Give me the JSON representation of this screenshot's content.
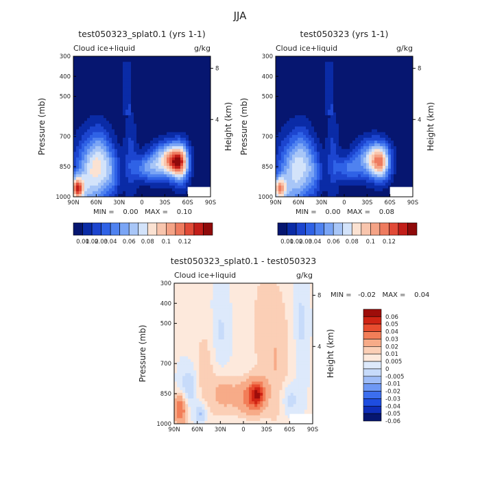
{
  "page_title": "JJA",
  "chart_data": [
    {
      "type": "heatmap",
      "title": "test050323_splat0.1 (yrs 1-1)",
      "variable": "Cloud ice+liquid",
      "units": "g/kg",
      "ylabel": "Pressure (mb)",
      "y2label": "Height (km)",
      "x_ticks": [
        "90N",
        "60N",
        "30N",
        "0",
        "30S",
        "60S",
        "90S"
      ],
      "y_ticks": [
        "300",
        "400",
        "500",
        "700",
        "850",
        "1000"
      ],
      "y2_ticks": [
        "8",
        "4"
      ],
      "min_max": "MIN =    0.00   MAX =    0.10",
      "colorbar_labels": [
        "0.01",
        "0.02",
        "0.03",
        "0.04",
        "0.06",
        "0.08",
        "0.1",
        "0.12"
      ],
      "blobs": [
        {
          "lat": 70,
          "p": 900,
          "v": 0.06,
          "sx": 14,
          "sp": 130
        },
        {
          "lat": 55,
          "p": 820,
          "v": 0.045,
          "sx": 10,
          "sp": 110
        },
        {
          "lat": 40,
          "p": 880,
          "v": 0.035,
          "sx": 8,
          "sp": 90
        },
        {
          "lat": 15,
          "p": 800,
          "v": 0.02,
          "sx": 6,
          "sp": 160
        },
        {
          "lat": -30,
          "p": 820,
          "v": 0.065,
          "sx": 14,
          "sp": 60
        },
        {
          "lat": -45,
          "p": 820,
          "v": 0.08,
          "sx": 10,
          "sp": 55
        },
        {
          "lat": -52,
          "p": 840,
          "v": 0.05,
          "sx": 7,
          "sp": 75
        },
        {
          "lat": -5,
          "p": 860,
          "v": 0.04,
          "sx": 12,
          "sp": 45
        },
        {
          "lat": 85,
          "p": 960,
          "v": 0.1,
          "sx": 6,
          "sp": 40
        }
      ]
    },
    {
      "type": "heatmap",
      "title": "test050323 (yrs 1-1)",
      "variable": "Cloud ice+liquid",
      "units": "g/kg",
      "ylabel": "Pressure (mb)",
      "y2label": "Height (km)",
      "x_ticks": [
        "90N",
        "60N",
        "30N",
        "0",
        "30S",
        "60S",
        "90S"
      ],
      "y_ticks": [
        "300",
        "400",
        "500",
        "700",
        "850",
        "1000"
      ],
      "y2_ticks": [
        "8",
        "4"
      ],
      "min_max": "MIN =    0.00   MAX =    0.08",
      "colorbar_labels": [
        "0.01",
        "0.02",
        "0.03",
        "0.04",
        "0.06",
        "0.08",
        "0.1",
        "0.12"
      ],
      "blobs": [
        {
          "lat": 70,
          "p": 900,
          "v": 0.055,
          "sx": 14,
          "sp": 130
        },
        {
          "lat": 55,
          "p": 820,
          "v": 0.04,
          "sx": 10,
          "sp": 110
        },
        {
          "lat": 40,
          "p": 880,
          "v": 0.03,
          "sx": 8,
          "sp": 90
        },
        {
          "lat": 15,
          "p": 800,
          "v": 0.02,
          "sx": 6,
          "sp": 160
        },
        {
          "lat": -35,
          "p": 810,
          "v": 0.06,
          "sx": 14,
          "sp": 65
        },
        {
          "lat": -48,
          "p": 830,
          "v": 0.075,
          "sx": 9,
          "sp": 60
        },
        {
          "lat": -5,
          "p": 860,
          "v": 0.035,
          "sx": 12,
          "sp": 45
        },
        {
          "lat": 85,
          "p": 960,
          "v": 0.08,
          "sx": 6,
          "sp": 40
        }
      ]
    },
    {
      "type": "heatmap",
      "title": "test050323_splat0.1 - test050323",
      "variable": "Cloud ice+liquid",
      "units": "g/kg",
      "ylabel": "Pressure (mb)",
      "y2label": "Height (km)",
      "x_ticks": [
        "90N",
        "60N",
        "30N",
        "0",
        "30S",
        "60S",
        "90S"
      ],
      "y_ticks": [
        "300",
        "400",
        "500",
        "700",
        "850",
        "1000"
      ],
      "y2_ticks": [
        "8",
        "4"
      ],
      "min_max": "MIN =   -0.02   MAX =    0.04",
      "colorbar_labels": [
        "0.06",
        "0.05",
        "0.04",
        "0.03",
        "0.02",
        "0.01",
        "0.005",
        "0",
        "-0.005",
        "-0.01",
        "-0.02",
        "-0.03",
        "-0.04",
        "-0.05",
        "-0.06"
      ],
      "blobs": [
        {
          "lat": -18,
          "p": 855,
          "v": 0.04,
          "sx": 7,
          "sp": 45
        },
        {
          "lat": -5,
          "p": 870,
          "v": 0.02,
          "sx": 12,
          "sp": 60
        },
        {
          "lat": 25,
          "p": 850,
          "v": 0.012,
          "sx": 10,
          "sp": 70
        },
        {
          "lat": 82,
          "p": 930,
          "v": 0.03,
          "sx": 6,
          "sp": 50
        },
        {
          "lat": 50,
          "p": 780,
          "v": 0.008,
          "sx": 12,
          "sp": 200
        },
        {
          "lat": -45,
          "p": 750,
          "v": 0.006,
          "sx": 12,
          "sp": 220
        },
        {
          "lat": -30,
          "p": 500,
          "v": 0.006,
          "sx": 20,
          "sp": 300
        },
        {
          "lat": 70,
          "p": 820,
          "v": -0.012,
          "sx": 8,
          "sp": 80
        },
        {
          "lat": 55,
          "p": 950,
          "v": -0.015,
          "sx": 6,
          "sp": 40
        },
        {
          "lat": -60,
          "p": 880,
          "v": -0.01,
          "sx": 8,
          "sp": 60
        },
        {
          "lat": 30,
          "p": 550,
          "v": -0.007,
          "sx": 8,
          "sp": 150
        },
        {
          "lat": -75,
          "p": 500,
          "v": -0.007,
          "sx": 6,
          "sp": 200
        }
      ]
    }
  ],
  "colors": {
    "abs_scale": [
      "#061670",
      "#0a2ba6",
      "#1c45cf",
      "#2f62e6",
      "#4f82f0",
      "#7aa5f5",
      "#a8c6f7",
      "#d3e3fa",
      "#fbe2d2",
      "#f8c5ad",
      "#f4a386",
      "#ee7b5f",
      "#e14a37",
      "#c21e19",
      "#8f0a0a"
    ],
    "diff_scale": [
      "#061670",
      "#0f2eb8",
      "#1e4de0",
      "#3c6eee",
      "#6e98f4",
      "#9fbdf7",
      "#c7dbfa",
      "#dde9fb",
      "#fde9dc",
      "#fbcfb6",
      "#f7ab88",
      "#f27e58",
      "#e84d2f",
      "#cf2414",
      "#9e0d0a"
    ]
  }
}
